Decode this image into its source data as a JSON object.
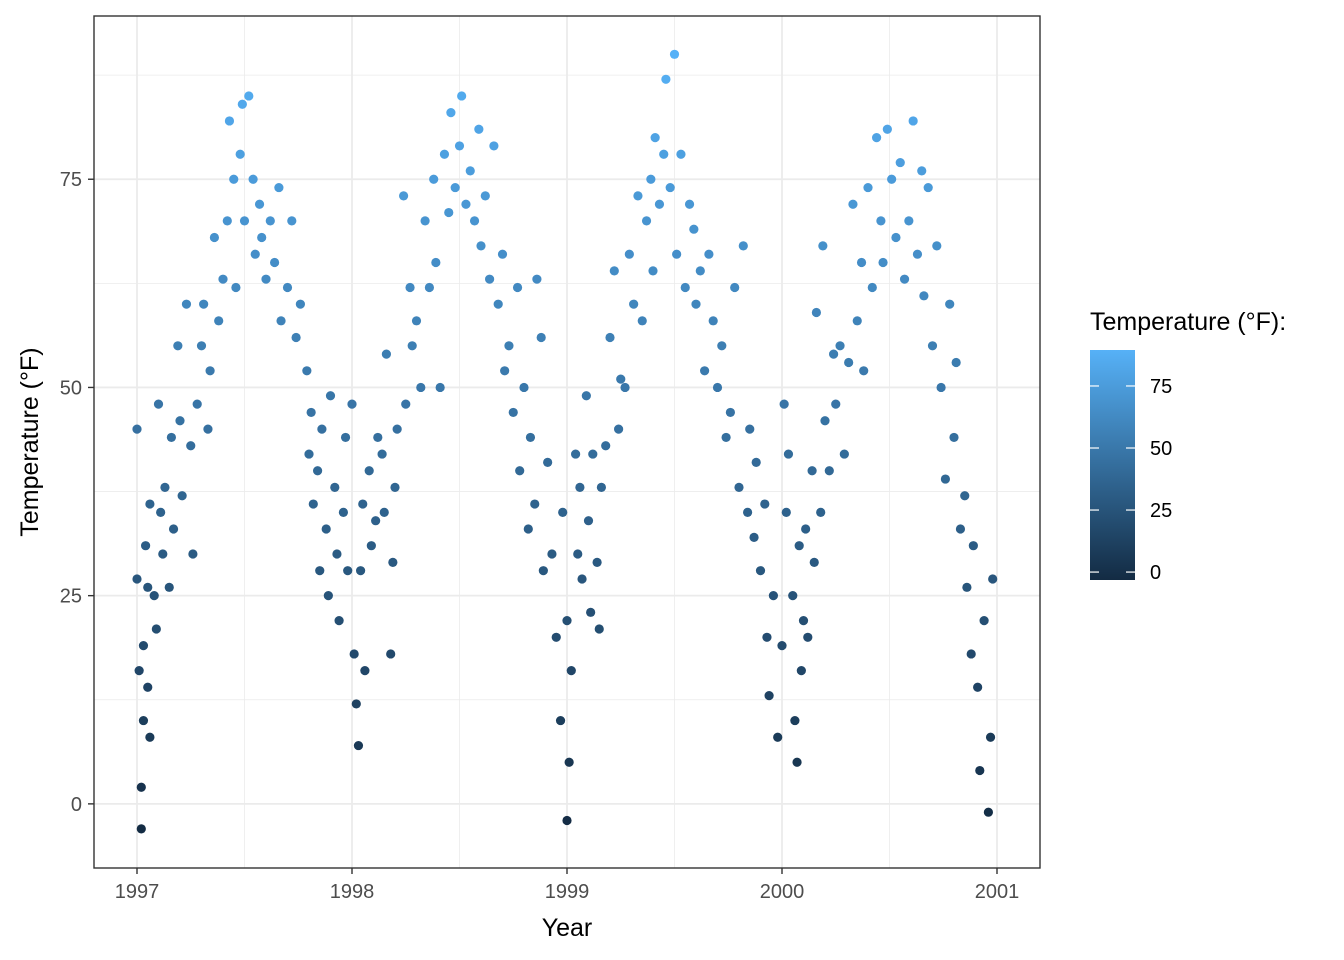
{
  "chart_data": {
    "type": "scatter",
    "title": "",
    "xlabel": "Year",
    "ylabel": "Temperature (°F)",
    "xlim": [
      1996.8,
      2001.2
    ],
    "ylim": [
      -7.7,
      94.6
    ],
    "x_ticks": [
      "1997",
      "1998",
      "1999",
      "2000",
      "2001"
    ],
    "y_ticks": [
      "0",
      "25",
      "50",
      "75"
    ],
    "grid": true,
    "legend": {
      "title": "Temperature (°F):",
      "placement": "right",
      "type": "colorbar",
      "ticks": [
        "0",
        "25",
        "50",
        "75"
      ],
      "range": [
        -3.2,
        89.5
      ],
      "low_color": "#132B43",
      "high_color": "#56B1F7"
    },
    "point_color_scale": {
      "min": -3,
      "max": 90,
      "low_color": "#132B43",
      "high_color": "#56B1F7"
    },
    "points_by_year": {
      "1997": [
        [
          0.0,
          45
        ],
        [
          0.0,
          27
        ],
        [
          0.01,
          16
        ],
        [
          0.02,
          2
        ],
        [
          0.02,
          -3
        ],
        [
          0.03,
          19
        ],
        [
          0.03,
          10
        ],
        [
          0.04,
          31
        ],
        [
          0.05,
          26
        ],
        [
          0.05,
          14
        ],
        [
          0.06,
          36
        ],
        [
          0.06,
          8
        ],
        [
          0.08,
          25
        ],
        [
          0.09,
          21
        ],
        [
          0.1,
          48
        ],
        [
          0.11,
          35
        ],
        [
          0.12,
          30
        ],
        [
          0.13,
          38
        ],
        [
          0.15,
          26
        ],
        [
          0.16,
          44
        ],
        [
          0.17,
          33
        ],
        [
          0.19,
          55
        ],
        [
          0.2,
          46
        ],
        [
          0.21,
          37
        ],
        [
          0.23,
          60
        ],
        [
          0.25,
          43
        ],
        [
          0.26,
          30
        ],
        [
          0.28,
          48
        ],
        [
          0.3,
          55
        ],
        [
          0.31,
          60
        ],
        [
          0.33,
          45
        ],
        [
          0.34,
          52
        ],
        [
          0.36,
          68
        ],
        [
          0.38,
          58
        ],
        [
          0.4,
          63
        ],
        [
          0.42,
          70
        ],
        [
          0.43,
          82
        ],
        [
          0.45,
          75
        ],
        [
          0.46,
          62
        ],
        [
          0.48,
          78
        ],
        [
          0.49,
          84
        ],
        [
          0.5,
          70
        ],
        [
          0.52,
          85
        ],
        [
          0.54,
          75
        ],
        [
          0.55,
          66
        ],
        [
          0.57,
          72
        ],
        [
          0.58,
          68
        ],
        [
          0.6,
          63
        ],
        [
          0.62,
          70
        ],
        [
          0.64,
          65
        ],
        [
          0.66,
          74
        ],
        [
          0.67,
          58
        ],
        [
          0.7,
          62
        ],
        [
          0.72,
          70
        ],
        [
          0.74,
          56
        ],
        [
          0.76,
          60
        ],
        [
          0.79,
          52
        ],
        [
          0.8,
          42
        ],
        [
          0.81,
          47
        ],
        [
          0.82,
          36
        ],
        [
          0.84,
          40
        ],
        [
          0.85,
          28
        ],
        [
          0.86,
          45
        ],
        [
          0.88,
          33
        ],
        [
          0.89,
          25
        ],
        [
          0.9,
          49
        ],
        [
          0.92,
          38
        ],
        [
          0.93,
          30
        ],
        [
          0.94,
          22
        ],
        [
          0.96,
          35
        ],
        [
          0.97,
          44
        ],
        [
          0.98,
          28
        ]
      ],
      "1998": [
        [
          0.0,
          48
        ],
        [
          0.01,
          18
        ],
        [
          0.02,
          12
        ],
        [
          0.03,
          7
        ],
        [
          0.04,
          28
        ],
        [
          0.05,
          36
        ],
        [
          0.06,
          16
        ],
        [
          0.08,
          40
        ],
        [
          0.09,
          31
        ],
        [
          0.11,
          34
        ],
        [
          0.12,
          44
        ],
        [
          0.14,
          42
        ],
        [
          0.15,
          35
        ],
        [
          0.16,
          54
        ],
        [
          0.18,
          18
        ],
        [
          0.19,
          29
        ],
        [
          0.2,
          38
        ],
        [
          0.21,
          45
        ],
        [
          0.24,
          73
        ],
        [
          0.25,
          48
        ],
        [
          0.27,
          62
        ],
        [
          0.28,
          55
        ],
        [
          0.3,
          58
        ],
        [
          0.32,
          50
        ],
        [
          0.34,
          70
        ],
        [
          0.36,
          62
        ],
        [
          0.38,
          75
        ],
        [
          0.39,
          65
        ],
        [
          0.41,
          50
        ],
        [
          0.43,
          78
        ],
        [
          0.45,
          71
        ],
        [
          0.46,
          83
        ],
        [
          0.48,
          74
        ],
        [
          0.5,
          79
        ],
        [
          0.51,
          85
        ],
        [
          0.53,
          72
        ],
        [
          0.55,
          76
        ],
        [
          0.57,
          70
        ],
        [
          0.59,
          81
        ],
        [
          0.6,
          67
        ],
        [
          0.62,
          73
        ],
        [
          0.64,
          63
        ],
        [
          0.66,
          79
        ],
        [
          0.68,
          60
        ],
        [
          0.7,
          66
        ],
        [
          0.71,
          52
        ],
        [
          0.73,
          55
        ],
        [
          0.75,
          47
        ],
        [
          0.77,
          62
        ],
        [
          0.78,
          40
        ],
        [
          0.8,
          50
        ],
        [
          0.82,
          33
        ],
        [
          0.83,
          44
        ],
        [
          0.85,
          36
        ],
        [
          0.86,
          63
        ],
        [
          0.88,
          56
        ],
        [
          0.89,
          28
        ],
        [
          0.91,
          41
        ],
        [
          0.93,
          30
        ],
        [
          0.95,
          20
        ],
        [
          0.97,
          10
        ],
        [
          0.98,
          35
        ]
      ],
      "1999": [
        [
          0.0,
          -2
        ],
        [
          0.0,
          22
        ],
        [
          0.01,
          5
        ],
        [
          0.02,
          16
        ],
        [
          0.04,
          42
        ],
        [
          0.05,
          30
        ],
        [
          0.06,
          38
        ],
        [
          0.07,
          27
        ],
        [
          0.09,
          49
        ],
        [
          0.1,
          34
        ],
        [
          0.11,
          23
        ],
        [
          0.12,
          42
        ],
        [
          0.14,
          29
        ],
        [
          0.15,
          21
        ],
        [
          0.16,
          38
        ],
        [
          0.18,
          43
        ],
        [
          0.2,
          56
        ],
        [
          0.22,
          64
        ],
        [
          0.24,
          45
        ],
        [
          0.25,
          51
        ],
        [
          0.27,
          50
        ],
        [
          0.29,
          66
        ],
        [
          0.31,
          60
        ],
        [
          0.33,
          73
        ],
        [
          0.35,
          58
        ],
        [
          0.37,
          70
        ],
        [
          0.39,
          75
        ],
        [
          0.4,
          64
        ],
        [
          0.41,
          80
        ],
        [
          0.43,
          72
        ],
        [
          0.45,
          78
        ],
        [
          0.46,
          87
        ],
        [
          0.48,
          74
        ],
        [
          0.5,
          90
        ],
        [
          0.51,
          66
        ],
        [
          0.53,
          78
        ],
        [
          0.55,
          62
        ],
        [
          0.57,
          72
        ],
        [
          0.59,
          69
        ],
        [
          0.6,
          60
        ],
        [
          0.62,
          64
        ],
        [
          0.64,
          52
        ],
        [
          0.66,
          66
        ],
        [
          0.68,
          58
        ],
        [
          0.7,
          50
        ],
        [
          0.72,
          55
        ],
        [
          0.74,
          44
        ],
        [
          0.76,
          47
        ],
        [
          0.78,
          62
        ],
        [
          0.8,
          38
        ],
        [
          0.82,
          67
        ],
        [
          0.84,
          35
        ],
        [
          0.85,
          45
        ],
        [
          0.87,
          32
        ],
        [
          0.88,
          41
        ],
        [
          0.9,
          28
        ],
        [
          0.92,
          36
        ],
        [
          0.93,
          20
        ],
        [
          0.94,
          13
        ],
        [
          0.96,
          25
        ],
        [
          0.98,
          8
        ]
      ],
      "2000": [
        [
          0.0,
          19
        ],
        [
          0.01,
          48
        ],
        [
          0.02,
          35
        ],
        [
          0.03,
          42
        ],
        [
          0.05,
          25
        ],
        [
          0.06,
          10
        ],
        [
          0.07,
          5
        ],
        [
          0.08,
          31
        ],
        [
          0.09,
          16
        ],
        [
          0.1,
          22
        ],
        [
          0.11,
          33
        ],
        [
          0.12,
          20
        ],
        [
          0.14,
          40
        ],
        [
          0.15,
          29
        ],
        [
          0.16,
          59
        ],
        [
          0.18,
          35
        ],
        [
          0.19,
          67
        ],
        [
          0.2,
          46
        ],
        [
          0.22,
          40
        ],
        [
          0.24,
          54
        ],
        [
          0.25,
          48
        ],
        [
          0.27,
          55
        ],
        [
          0.29,
          42
        ],
        [
          0.31,
          53
        ],
        [
          0.33,
          72
        ],
        [
          0.35,
          58
        ],
        [
          0.37,
          65
        ],
        [
          0.38,
          52
        ],
        [
          0.4,
          74
        ],
        [
          0.42,
          62
        ],
        [
          0.44,
          80
        ],
        [
          0.46,
          70
        ],
        [
          0.47,
          65
        ],
        [
          0.49,
          81
        ],
        [
          0.51,
          75
        ],
        [
          0.53,
          68
        ],
        [
          0.55,
          77
        ],
        [
          0.57,
          63
        ],
        [
          0.59,
          70
        ],
        [
          0.61,
          82
        ],
        [
          0.63,
          66
        ],
        [
          0.65,
          76
        ],
        [
          0.66,
          61
        ],
        [
          0.68,
          74
        ],
        [
          0.7,
          55
        ],
        [
          0.72,
          67
        ],
        [
          0.74,
          50
        ],
        [
          0.76,
          39
        ],
        [
          0.78,
          60
        ],
        [
          0.8,
          44
        ],
        [
          0.81,
          53
        ],
        [
          0.83,
          33
        ],
        [
          0.85,
          37
        ],
        [
          0.86,
          26
        ],
        [
          0.88,
          18
        ],
        [
          0.89,
          31
        ],
        [
          0.91,
          14
        ],
        [
          0.92,
          4
        ],
        [
          0.94,
          22
        ],
        [
          0.96,
          -1
        ],
        [
          0.97,
          8
        ],
        [
          0.98,
          27
        ]
      ]
    }
  }
}
